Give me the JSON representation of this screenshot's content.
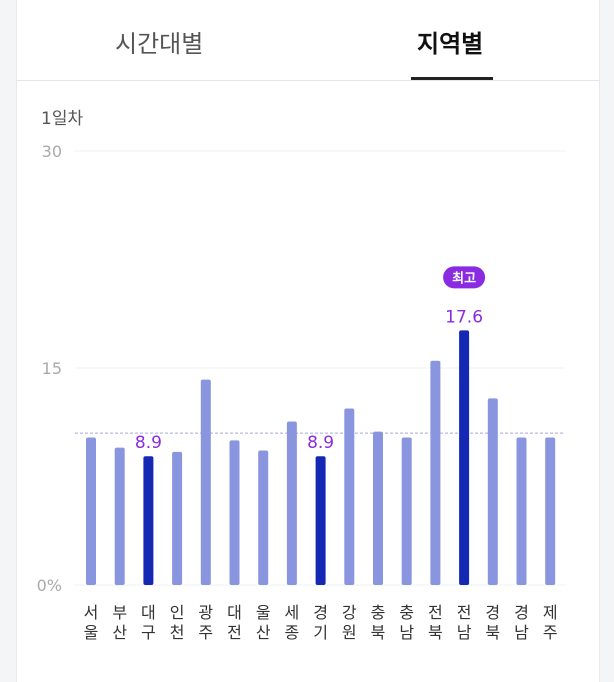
{
  "tabs": [
    {
      "label": "시간대별",
      "active": false
    },
    {
      "label": "지역별",
      "active": true
    }
  ],
  "subtitle": "1일차",
  "colors": {
    "bar": "#8a95e0",
    "highlight": "#1428b4",
    "label": "#8a2be2",
    "badge": "#8a2be2"
  },
  "chart_data": {
    "type": "bar",
    "categories": [
      "서울",
      "부산",
      "대구",
      "인천",
      "광주",
      "대전",
      "울산",
      "세종",
      "경기",
      "강원",
      "충북",
      "충남",
      "전북",
      "전남",
      "경북",
      "경남",
      "제주"
    ],
    "values": [
      10.2,
      9.5,
      8.9,
      9.2,
      14.2,
      10.0,
      9.3,
      11.3,
      8.9,
      12.2,
      10.6,
      10.2,
      15.5,
      17.6,
      12.9,
      10.2,
      10.2
    ],
    "highlighted": [
      2,
      8,
      13
    ],
    "data_labels": {
      "2": "8.9",
      "8": "8.9",
      "13": "17.6"
    },
    "badge": {
      "index": 13,
      "text": "최고"
    },
    "average_line": 10.5,
    "yticks": [
      {
        "value": 0,
        "label": "0%"
      },
      {
        "value": 15,
        "label": "15"
      },
      {
        "value": 30,
        "label": "30"
      }
    ],
    "ylim": [
      0,
      30
    ]
  }
}
